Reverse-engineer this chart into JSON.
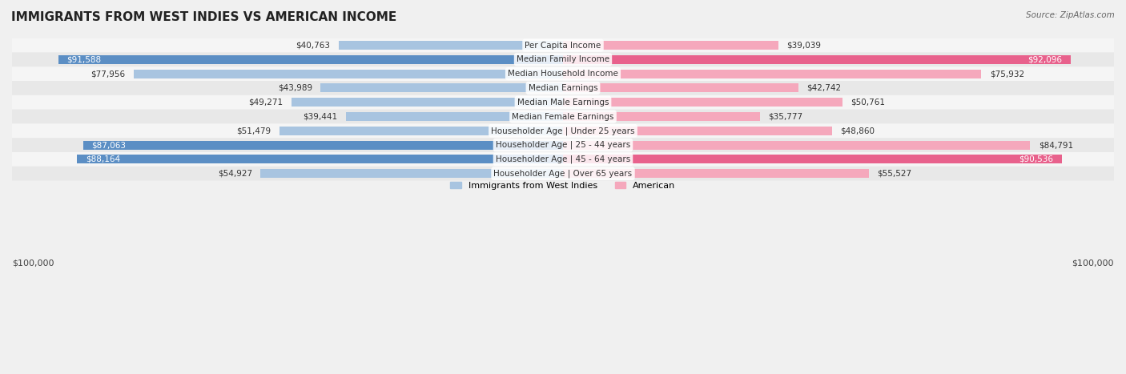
{
  "title": "IMMIGRANTS FROM WEST INDIES VS AMERICAN INCOME",
  "source": "Source: ZipAtlas.com",
  "categories": [
    "Per Capita Income",
    "Median Family Income",
    "Median Household Income",
    "Median Earnings",
    "Median Male Earnings",
    "Median Female Earnings",
    "Householder Age | Under 25 years",
    "Householder Age | 25 - 44 years",
    "Householder Age | 45 - 64 years",
    "Householder Age | Over 65 years"
  ],
  "west_indies_values": [
    40763,
    91588,
    77956,
    43989,
    49271,
    39441,
    51479,
    87063,
    88164,
    54927
  ],
  "american_values": [
    39039,
    92096,
    75932,
    42742,
    50761,
    35777,
    48860,
    84791,
    90536,
    55527
  ],
  "west_indies_labels": [
    "$40,763",
    "$91,588",
    "$77,956",
    "$43,989",
    "$49,271",
    "$39,441",
    "$51,479",
    "$87,063",
    "$88,164",
    "$54,927"
  ],
  "american_labels": [
    "$39,039",
    "$92,096",
    "$75,932",
    "$42,742",
    "$50,761",
    "$35,777",
    "$48,860",
    "$84,791",
    "$90,536",
    "$55,527"
  ],
  "max_value": 100000,
  "color_west_indies_light": "#a8c4e0",
  "color_west_indies_dark": "#5b8ec4",
  "color_american_light": "#f5a8bc",
  "color_american_dark": "#e8618c",
  "bg_color": "#f0f0f0",
  "row_bg_light": "#f5f5f5",
  "row_bg_dark": "#e8e8e8",
  "legend_label_west": "Immigrants from West Indies",
  "legend_label_american": "American",
  "xlabel_left": "$100,000",
  "xlabel_right": "$100,000",
  "threshold_dark": 85000
}
